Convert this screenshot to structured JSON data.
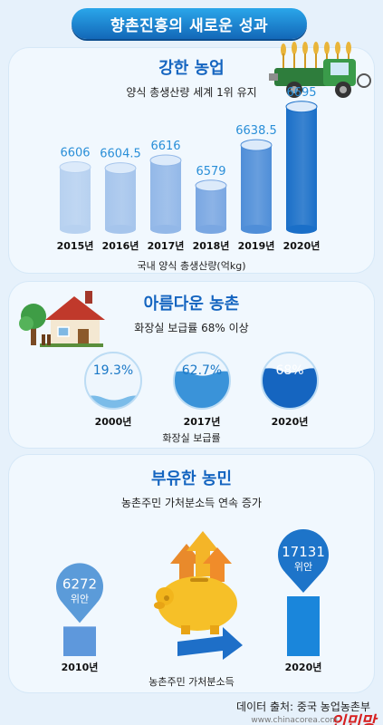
{
  "title": "향촌진흥의 새로운 성과",
  "sections": [
    {
      "heading": "강한 농업",
      "subtitle": "양식 총생산량 세계 1위 유지",
      "note": "국내 양식 총생산량(억kg)"
    },
    {
      "heading": "아름다운 농촌",
      "subtitle": "화장실 보급률 68% 이상",
      "note": "화장실 보급률"
    },
    {
      "heading": "부유한 농민",
      "subtitle": "농촌주민 가처분소득 연속 증가",
      "note": "농촌주민 가처분소득"
    }
  ],
  "chart_data": [
    {
      "type": "bar",
      "categories": [
        "2015년",
        "2016년",
        "2017년",
        "2018년",
        "2019년",
        "2020년"
      ],
      "values": [
        6606,
        6604.5,
        6616,
        6579,
        6638.5,
        6695
      ],
      "value_labels": [
        "6606",
        "6604.5",
        "6616",
        "6579",
        "6638.5",
        "6695"
      ],
      "title": "",
      "xlabel": "국내 양식 총생산량(억kg)",
      "ylabel": ""
    },
    {
      "type": "bar",
      "categories": [
        "2000년",
        "2017년",
        "2020년"
      ],
      "values": [
        19.3,
        62.7,
        68
      ],
      "value_labels": [
        "19.3%",
        "62.7%",
        "68%"
      ],
      "unit": "%",
      "xlabel": "화장실 보급률"
    },
    {
      "type": "bar",
      "categories": [
        "2010년",
        "2020년"
      ],
      "values": [
        6272,
        17131
      ],
      "value_labels": [
        "6272",
        "17131"
      ],
      "unit": "위안",
      "xlabel": "농촌주민 가처분소득"
    }
  ],
  "footer": {
    "source": "데이터 출처: 중국 농업농촌부",
    "watermark": "인민망",
    "watermark_url": "www.chinacorea.com"
  },
  "icons": [
    "harvester-icon",
    "house-icon",
    "tree-icon",
    "piggy-bank-icon",
    "up-arrows-icon",
    "right-arrow-icon"
  ],
  "colors": {
    "accent": "#1565c0",
    "bar_light": "#aac8ee",
    "bar_mid": "#6a9fe0",
    "bar_dark": "#1a6fc8",
    "water": "#1e7fcf"
  }
}
